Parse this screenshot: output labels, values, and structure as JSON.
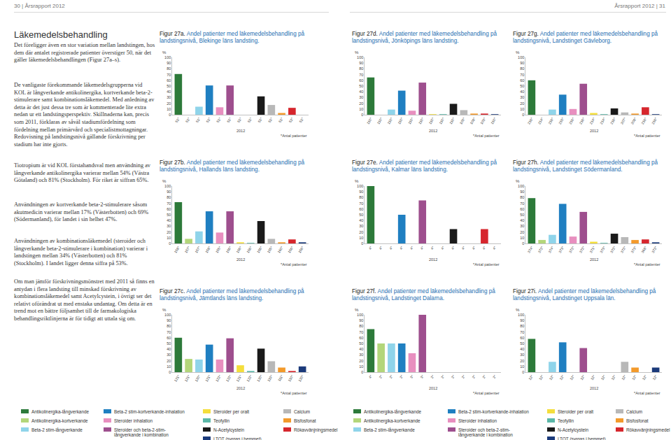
{
  "header": {
    "left": "30 | Årsrapport 2012",
    "right": "Årsrapport 2012 | 31"
  },
  "text": {
    "heading": "Läkemedelsbehandling",
    "paragraphs": [
      "Det föreligger även en stor variation mellan landstingen, hos dem där antalet registrerade patienter överstiger 50, när det gäller läkemedelsbehandlingen (Figur 27a–s).",
      "De vanligaste förekommande läkemedelsgrupperna vid KOL är långverkande antikolinergika, kortverkande beta-2-stimulerare samt kombinationsläkemedel. Med anledning av detta är det just dessa tre som är kommenterade lite extra nedan ur ett landstingsperspektiv. Skillnaderna kan, precis som 2011, förklaras av såväl stadiumfördelning som fördelning mellan primärvård och specialistmottagningar. Redovisning på landstingsnivå gällande förskrivning per stadium har inte gjorts.",
      "Tiotropium är vid KOL förstahandsval men användning av långverkande antikolinergika varierar mellan 54% (Västra Götaland) och 81% (Stockholm). För riket är siffran 65%.",
      "Användningen av kortverkande beta-2-stimulerare såsom akutmedicin varierar mellan 17% (Västerbotten) och 69% (Södermanland), för landet i sin helhet 47%.",
      "Användningen av kombinationsläkemedel (steroider och långverkande beta-2-stimulerare i kombination) varierar i landstingen mellan 34% (Västerbotten) och 81% (Stockholm). I landet ligger denna siffra på 53%.",
      "Om man jämför förskrivningsmönstret med 2011 så finns en antydan i flera landsting till minskad förskrivning av kombinationsläkemedel samt Acetylcystein, i övrigt ser det relativt oförändrat ut med enstaka undantag. Om detta är en trend mot en bättre följsamhet till de farmakologiska behandlingsriktlinjerna är för tidigt att uttala sig om."
    ]
  },
  "legend_items": [
    {
      "name": "Antikolinergika-långverkande",
      "color": "#2d7a3a"
    },
    {
      "name": "Antikolinergika-kortverkande",
      "color": "#b3d67a"
    },
    {
      "name": "Beta-2 stim-långverkande",
      "color": "#8fd4ea"
    },
    {
      "name": "Beta-2 stim-kortverkande-inhalation",
      "color": "#1f7fc1"
    },
    {
      "name": "Steroider inhalation",
      "color": "#e88fbf"
    },
    {
      "name": "Steroider och beta-2-stim-långverkande i kombination",
      "color": "#9e4f8e"
    },
    {
      "name": "Steroider per oralt",
      "color": "#f4de3c"
    },
    {
      "name": "Teofyllin",
      "color": "#5bb8a8"
    },
    {
      "name": "N-Acetylcystein",
      "color": "#1a1a1a"
    },
    {
      "name": "LTOT (syrgas i hemmet)",
      "color": "#1b3a7a"
    },
    {
      "name": "Calcium",
      "color": "#b8b8b8"
    },
    {
      "name": "Bisfosfonat",
      "color": "#f39a2b"
    },
    {
      "name": "Rökavvänjningsmedel",
      "color": "#d6262d"
    }
  ],
  "chart_data": [
    {
      "type": "bar",
      "figure": "Figur 27a.",
      "title": "Andel patienter med läkemedelsbehandling på landstingsnivå, Blekinge läns landsting.",
      "categories": [
        "51*",
        "51*",
        "51*",
        "51*",
        "51*",
        "51*",
        "51*",
        "51*",
        "51*",
        "51*",
        "51*",
        "52*",
        "51*"
      ],
      "values": [
        71,
        0,
        14,
        51,
        13,
        51,
        0,
        0,
        32,
        17,
        3,
        12,
        0
      ],
      "colors": [
        "#2d7a3a",
        "#b3d67a",
        "#8fd4ea",
        "#1f7fc1",
        "#e88fbf",
        "#9e4f8e",
        "#f4de3c",
        "#5bb8a8",
        "#1a1a1a",
        "#b8b8b8",
        "#f39a2b",
        "#d6262d",
        "#1b3a7a"
      ],
      "y_label": "%",
      "x_label": "2012",
      "note": "*Antal patienter",
      "ylim": [
        0,
        100
      ],
      "yticks": [
        0,
        10,
        20,
        30,
        40,
        50,
        60,
        70,
        80,
        90,
        100
      ],
      "grid": false
    },
    {
      "type": "bar",
      "figure": "Figur 27b.",
      "title": "Andel patienter med läkemedelsbehandling på landstingsnivå, Hallands läns landsting.",
      "categories": [
        "158*",
        "157*",
        "157*",
        "158*",
        "155*",
        "156*",
        "156*",
        "156*",
        "156*",
        "155*",
        "160*",
        "156*",
        "156*"
      ],
      "values": [
        72,
        8,
        21,
        56,
        19,
        56,
        2,
        1,
        39,
        8,
        2,
        7,
        2
      ],
      "colors": [
        "#2d7a3a",
        "#b3d67a",
        "#8fd4ea",
        "#1f7fc1",
        "#e88fbf",
        "#9e4f8e",
        "#f4de3c",
        "#5bb8a8",
        "#1a1a1a",
        "#b8b8b8",
        "#f39a2b",
        "#d6262d",
        "#1b3a7a"
      ],
      "y_label": "%",
      "x_label": "2012",
      "note": "*Antal patienter",
      "ylim": [
        0,
        100
      ],
      "yticks": [
        0,
        10,
        20,
        30,
        40,
        50,
        60,
        70,
        80,
        90,
        100
      ],
      "grid": false
    },
    {
      "type": "bar",
      "figure": "Figur 27c.",
      "title": "Andel patienter med läkemedelsbehandling på landstingsnivå, Jämtlands läns landsting.",
      "categories": [
        "121*",
        "121*",
        "120*",
        "121*",
        "122*",
        "122*",
        "121*",
        "122*",
        "120*",
        "119*",
        "111*",
        "110*",
        "120*"
      ],
      "values": [
        60,
        23,
        22,
        48,
        22,
        59,
        12,
        2,
        41,
        19,
        8,
        2,
        10
      ],
      "colors": [
        "#2d7a3a",
        "#b3d67a",
        "#8fd4ea",
        "#1f7fc1",
        "#e88fbf",
        "#9e4f8e",
        "#f4de3c",
        "#5bb8a8",
        "#1a1a1a",
        "#b8b8b8",
        "#f39a2b",
        "#d6262d",
        "#1b3a7a"
      ],
      "y_label": "%",
      "x_label": "2012",
      "note": "*Antal patienter",
      "ylim": [
        0,
        100
      ],
      "yticks": [
        0,
        10,
        20,
        30,
        40,
        50,
        60,
        70,
        80,
        90,
        100
      ],
      "grid": false
    },
    {
      "type": "bar",
      "figure": "Figur 27d.",
      "title": "Andel patienter med läkemedelsbehandling på landstingsnivå, Jönköpings läns landsting.",
      "categories": [
        "110*",
        "110*",
        "110*",
        "110*",
        "110*",
        "110*",
        "110*",
        "110*",
        "110*",
        "109*",
        "108*",
        "109*",
        "110*"
      ],
      "values": [
        65,
        0,
        9,
        42,
        7,
        56,
        1,
        1,
        19,
        8,
        2,
        2,
        1
      ],
      "colors": [
        "#2d7a3a",
        "#b3d67a",
        "#8fd4ea",
        "#1f7fc1",
        "#e88fbf",
        "#9e4f8e",
        "#f4de3c",
        "#5bb8a8",
        "#1a1a1a",
        "#b8b8b8",
        "#f39a2b",
        "#d6262d",
        "#1b3a7a"
      ],
      "y_label": "%",
      "x_label": "2012",
      "note": "*Antal patienter",
      "ylim": [
        0,
        100
      ],
      "yticks": [
        0,
        10,
        20,
        30,
        40,
        50,
        60,
        70,
        80,
        90,
        100
      ],
      "grid": false
    },
    {
      "type": "bar",
      "figure": "Figur 27e.",
      "title": "Andel patienter med läkemedelsbehandling på landstingsnivå, Kalmar läns landsting.",
      "categories": [
        "4*",
        "4*",
        "4*",
        "4*",
        "4*",
        "4*",
        "4*",
        "4*",
        "4*",
        "4*",
        "4*",
        "4*",
        "4*"
      ],
      "values": [
        100,
        0,
        0,
        50,
        0,
        75,
        0,
        0,
        25,
        0,
        0,
        25,
        0
      ],
      "colors": [
        "#2d7a3a",
        "#b3d67a",
        "#8fd4ea",
        "#1f7fc1",
        "#e88fbf",
        "#9e4f8e",
        "#f4de3c",
        "#5bb8a8",
        "#1a1a1a",
        "#b8b8b8",
        "#f39a2b",
        "#d6262d",
        "#1b3a7a"
      ],
      "y_label": "%",
      "x_label": "2012",
      "note": "*Antal patienter",
      "ylim": [
        0,
        100
      ],
      "yticks": [
        0,
        10,
        20,
        30,
        40,
        50,
        60,
        70,
        80,
        90,
        100
      ],
      "grid": false
    },
    {
      "type": "bar",
      "figure": "Figur 27f.",
      "title": "Andel patienter med läkemedelsbehandling på landstingsnivå, Landstinget Dalarna.",
      "categories": [
        "4*",
        "2*",
        "2*",
        "2*",
        "3*",
        "3*",
        "2*",
        "2*",
        "2*",
        "2*",
        "2*",
        "2*",
        "2*"
      ],
      "values": [
        75,
        50,
        50,
        50,
        33,
        100,
        0,
        0,
        0,
        0,
        0,
        0,
        0
      ],
      "colors": [
        "#2d7a3a",
        "#b3d67a",
        "#8fd4ea",
        "#1f7fc1",
        "#e88fbf",
        "#9e4f8e",
        "#f4de3c",
        "#5bb8a8",
        "#1a1a1a",
        "#b8b8b8",
        "#f39a2b",
        "#d6262d",
        "#1b3a7a"
      ],
      "y_label": "%",
      "x_label": "2012",
      "note": "*Antal patienter",
      "ylim": [
        0,
        100
      ],
      "yticks": [
        0,
        10,
        20,
        30,
        40,
        50,
        60,
        70,
        80,
        90,
        100
      ],
      "grid": false
    },
    {
      "type": "bar",
      "figure": "Figur 27g.",
      "title": "Andel patienter med läkemedelsbehandling på landstingsnivå, Landstinget Gävleborg.",
      "categories": [
        "216*",
        "214*",
        "216*",
        "215*",
        "216*",
        "216*",
        "214*",
        "214*",
        "216*",
        "207*",
        "208*",
        "216*",
        "216*"
      ],
      "values": [
        60,
        0,
        9,
        35,
        10,
        54,
        3,
        1,
        11,
        4,
        2,
        13,
        1
      ],
      "colors": [
        "#2d7a3a",
        "#b3d67a",
        "#8fd4ea",
        "#1f7fc1",
        "#e88fbf",
        "#9e4f8e",
        "#f4de3c",
        "#5bb8a8",
        "#1a1a1a",
        "#b8b8b8",
        "#f39a2b",
        "#d6262d",
        "#1b3a7a"
      ],
      "y_label": "%",
      "x_label": "2012",
      "note": "*Antal patienter",
      "ylim": [
        0,
        100
      ],
      "yticks": [
        0,
        10,
        20,
        30,
        40,
        50,
        60,
        70,
        80,
        90,
        100
      ],
      "grid": false
    },
    {
      "type": "bar",
      "figure": "Figur 27h.",
      "title": "Andel patienter med läkemedelsbehandling på landstingsnivå, Landstinget Södermanland.",
      "categories": [
        "374*",
        "372*",
        "374*",
        "373*",
        "372*",
        "372*",
        "371*",
        "373*",
        "372*",
        "372*",
        "373*",
        "368*",
        "372*"
      ],
      "values": [
        79,
        6,
        15,
        69,
        12,
        55,
        3,
        1,
        17,
        11,
        6,
        7,
        2
      ],
      "colors": [
        "#2d7a3a",
        "#b3d67a",
        "#8fd4ea",
        "#1f7fc1",
        "#e88fbf",
        "#9e4f8e",
        "#f4de3c",
        "#5bb8a8",
        "#1a1a1a",
        "#b8b8b8",
        "#f39a2b",
        "#d6262d",
        "#1b3a7a"
      ],
      "y_label": "%",
      "x_label": "2012",
      "note": "*Antal patienter",
      "ylim": [
        0,
        100
      ],
      "yticks": [
        0,
        10,
        20,
        30,
        40,
        50,
        60,
        70,
        80,
        90,
        100
      ],
      "grid": false
    },
    {
      "type": "bar",
      "figure": "Figur 27i.",
      "title": "Andel patienter med läkemedelsbehandling på landstingsnivå, Landstinget Uppsala län.",
      "categories": [
        "12*",
        "12*",
        "12*",
        "12*",
        "12*",
        "12*",
        "12*",
        "12*",
        "12*",
        "12*",
        "12*",
        "12*",
        "12*"
      ],
      "values": [
        58,
        0,
        18,
        52,
        0,
        42,
        0,
        0,
        0,
        18,
        8,
        0,
        8
      ],
      "colors": [
        "#2d7a3a",
        "#b3d67a",
        "#8fd4ea",
        "#1f7fc1",
        "#e88fbf",
        "#9e4f8e",
        "#f4de3c",
        "#5bb8a8",
        "#1a1a1a",
        "#b8b8b8",
        "#f39a2b",
        "#d6262d",
        "#1b3a7a"
      ],
      "y_label": "%",
      "x_label": "2012",
      "note": "*Antal patienter",
      "ylim": [
        0,
        100
      ],
      "yticks": [
        0,
        10,
        20,
        30,
        40,
        50,
        60,
        70,
        80,
        90,
        100
      ],
      "grid": false
    }
  ]
}
